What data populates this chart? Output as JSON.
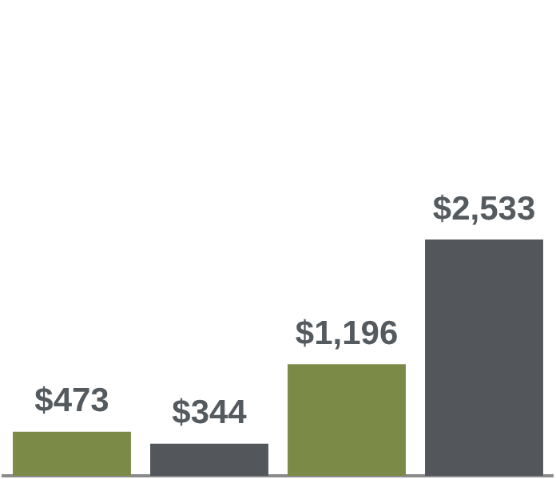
{
  "chart_data": {
    "type": "bar",
    "categories": [
      null,
      null,
      null,
      null
    ],
    "values": [
      473,
      344,
      1196,
      2533
    ],
    "colors": [
      "#7b8b47",
      "#53565b",
      "#7b8b47",
      "#53565b"
    ],
    "value_labels": [
      "$473",
      "$344",
      "$1,196",
      "$2,533"
    ],
    "grid": false,
    "legend": false
  }
}
